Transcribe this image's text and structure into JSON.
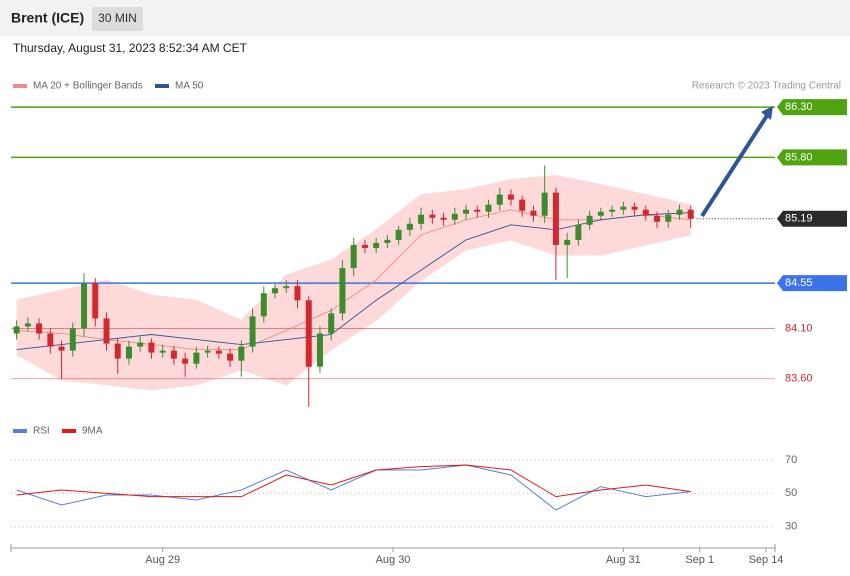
{
  "header": {
    "title": "Brent (ICE)",
    "interval": "30 MIN",
    "datetime": "Thursday, August 31, 2023 8:52:34 AM CET",
    "credit": "Research © 2023 Trading Central"
  },
  "chart_data": [
    {
      "type": "candlestick",
      "x": [
        0,
        1,
        2,
        3,
        4,
        5,
        6,
        7,
        8,
        9,
        10,
        11,
        12,
        13,
        14,
        15,
        16,
        17,
        18,
        19,
        20,
        21,
        22,
        23,
        24,
        25,
        26,
        27,
        28,
        29,
        30,
        31,
        32,
        33,
        34,
        35,
        36,
        37,
        38,
        39,
        40,
        41,
        42,
        43,
        44,
        45,
        46,
        47,
        48,
        49,
        50,
        51,
        52,
        53,
        54,
        55,
        56,
        57,
        58,
        59,
        60
      ],
      "open": [
        84.05,
        84.12,
        84.15,
        84.05,
        83.92,
        83.88,
        84.1,
        84.55,
        84.2,
        83.95,
        83.8,
        83.92,
        83.96,
        83.86,
        83.88,
        83.8,
        83.75,
        83.86,
        83.88,
        83.85,
        83.78,
        83.92,
        84.22,
        84.45,
        84.5,
        84.52,
        84.38,
        83.72,
        84.05,
        84.25,
        84.7,
        84.93,
        84.9,
        84.95,
        84.98,
        85.08,
        85.14,
        85.23,
        85.2,
        85.18,
        85.24,
        85.28,
        85.26,
        85.33,
        85.43,
        85.38,
        85.27,
        85.22,
        85.45,
        84.93,
        84.98,
        85.13,
        85.22,
        85.26,
        85.28,
        85.31,
        85.28,
        85.22,
        85.16,
        85.23,
        85.28
      ],
      "high": [
        84.18,
        84.21,
        84.2,
        84.1,
        83.98,
        84.16,
        84.65,
        84.6,
        84.26,
        84.0,
        83.98,
        84.02,
        84.0,
        83.94,
        83.93,
        83.86,
        83.92,
        83.93,
        83.92,
        83.9,
        83.98,
        84.3,
        84.52,
        84.56,
        84.58,
        84.58,
        84.42,
        84.12,
        84.3,
        84.78,
        85.0,
        84.98,
        85.0,
        85.03,
        85.12,
        85.2,
        85.3,
        85.28,
        85.25,
        85.3,
        85.33,
        85.32,
        85.38,
        85.5,
        85.48,
        85.42,
        85.32,
        85.72,
        85.5,
        85.05,
        85.18,
        85.27,
        85.3,
        85.32,
        85.36,
        85.35,
        85.32,
        85.26,
        85.28,
        85.33,
        85.32
      ],
      "low": [
        83.99,
        84.07,
        83.99,
        83.85,
        83.6,
        83.82,
        84.02,
        84.12,
        83.88,
        83.65,
        83.74,
        83.87,
        83.8,
        83.81,
        83.74,
        83.62,
        83.7,
        83.81,
        83.8,
        83.72,
        83.62,
        83.86,
        84.16,
        84.4,
        84.45,
        84.3,
        83.32,
        83.66,
        83.98,
        84.18,
        84.62,
        84.85,
        84.85,
        84.9,
        84.93,
        85.02,
        85.08,
        85.14,
        85.12,
        85.13,
        85.18,
        85.2,
        85.2,
        85.27,
        85.32,
        85.21,
        85.16,
        85.15,
        84.58,
        84.6,
        84.92,
        85.08,
        85.17,
        85.21,
        85.23,
        85.22,
        85.17,
        85.1,
        85.1,
        85.18,
        85.1
      ],
      "close": [
        84.12,
        84.15,
        84.05,
        83.92,
        83.88,
        84.1,
        84.55,
        84.2,
        83.95,
        83.8,
        83.92,
        83.96,
        83.86,
        83.88,
        83.8,
        83.75,
        83.86,
        83.88,
        83.85,
        83.78,
        83.92,
        84.22,
        84.45,
        84.5,
        84.52,
        84.38,
        83.72,
        84.05,
        84.25,
        84.7,
        84.93,
        84.9,
        84.95,
        84.98,
        85.08,
        85.14,
        85.23,
        85.2,
        85.18,
        85.24,
        85.28,
        85.26,
        85.33,
        85.43,
        85.38,
        85.27,
        85.22,
        85.45,
        84.93,
        84.98,
        85.13,
        85.22,
        85.26,
        85.28,
        85.31,
        85.28,
        85.22,
        85.16,
        85.23,
        85.28,
        85.19
      ],
      "up_color": "#3c8c2e",
      "down_color": "#d0292f",
      "series": [
        {
          "name": "MA 20 + Bollinger Bands",
          "color": "#f28b82",
          "band_color": "#fdd9d9",
          "x": [
            0,
            4,
            8,
            12,
            16,
            20,
            24,
            28,
            32,
            36,
            40,
            44,
            48,
            52,
            56,
            60
          ],
          "values": [
            84.08,
            84.05,
            83.99,
            83.94,
            83.89,
            83.89,
            84.08,
            84.28,
            84.58,
            85.03,
            85.18,
            85.28,
            85.18,
            85.18,
            85.23,
            85.18
          ],
          "upper": [
            84.38,
            84.48,
            84.58,
            84.43,
            84.38,
            84.18,
            84.63,
            84.78,
            85.08,
            85.43,
            85.48,
            85.58,
            85.62,
            85.53,
            85.43,
            85.33
          ],
          "lower": [
            83.84,
            83.59,
            83.54,
            83.49,
            83.54,
            83.69,
            83.54,
            83.89,
            84.18,
            84.58,
            84.88,
            84.98,
            84.83,
            84.83,
            84.93,
            85.03
          ]
        },
        {
          "name": "MA 50",
          "color": "#2f5597",
          "x": [
            0,
            4,
            8,
            12,
            16,
            20,
            24,
            28,
            32,
            36,
            40,
            44,
            48,
            52,
            56,
            60
          ],
          "values": [
            83.89,
            83.94,
            83.99,
            84.04,
            83.99,
            83.94,
            83.99,
            84.04,
            84.38,
            84.68,
            84.98,
            85.13,
            85.08,
            85.18,
            85.23,
            85.25
          ]
        }
      ],
      "levels": [
        {
          "value": 86.3,
          "label": "86.30",
          "color": "#4ea30f",
          "style": "box"
        },
        {
          "value": 85.8,
          "label": "85.80",
          "color": "#4ea30f",
          "style": "box"
        },
        {
          "value": 85.19,
          "color": "#2b2b2b",
          "style": "dotted"
        },
        {
          "value": 84.55,
          "color": "#3b73e8",
          "style": "box"
        },
        {
          "value": 84.1,
          "label": "84.10",
          "color": "#d0292f",
          "style": "thin"
        },
        {
          "value": 83.6,
          "label": "83.60",
          "color": "#d0292f",
          "style": "thin"
        }
      ],
      "xlim": [
        -0.5,
        67.5
      ],
      "ylim": [
        83.24,
        86.42
      ]
    },
    {
      "type": "line",
      "x": [
        0,
        4,
        8,
        12,
        16,
        20,
        24,
        28,
        32,
        36,
        40,
        44,
        48,
        52,
        56,
        60
      ],
      "series": [
        {
          "name": "RSI",
          "color": "#5b7fd6",
          "values": [
            52,
            43,
            49,
            49,
            46,
            52,
            64,
            52,
            64,
            64,
            67,
            61,
            40,
            54,
            48,
            51
          ]
        },
        {
          "name": "9MA",
          "color": "#e0191c",
          "values": [
            49,
            52,
            50,
            48,
            48,
            48,
            61,
            55,
            64,
            66,
            67,
            64,
            48,
            52,
            55,
            51
          ]
        }
      ],
      "xlim": [
        -0.5,
        67.5
      ],
      "ylim": [
        22,
        82
      ],
      "yticks": [
        30,
        50,
        70
      ],
      "xticks": [
        {
          "value": 13,
          "label": "Aug 29"
        },
        {
          "value": 33.5,
          "label": "Aug 30"
        },
        {
          "value": 54,
          "label": "Aug 31"
        },
        {
          "value": 60.8,
          "label": "Sep 1"
        },
        {
          "value": 66.7,
          "label": "Sep 14"
        }
      ]
    }
  ]
}
